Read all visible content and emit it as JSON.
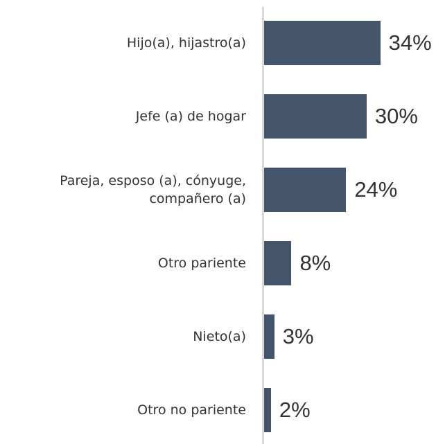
{
  "chart_data": {
    "type": "barh",
    "categories": [
      "Hijo(a), hijastro(a)",
      "Jefe (a) de hogar",
      "Pareja, esposo (a), cónyuge, compañero (a)",
      "Otro pariente",
      "Nieto(a)",
      "Otro no pariente"
    ],
    "values": [
      34,
      30,
      24,
      8,
      3,
      2
    ],
    "value_labels": [
      "34%",
      "30%",
      "24%",
      "8%",
      "3%",
      "2%"
    ],
    "color": "#44546a"
  }
}
